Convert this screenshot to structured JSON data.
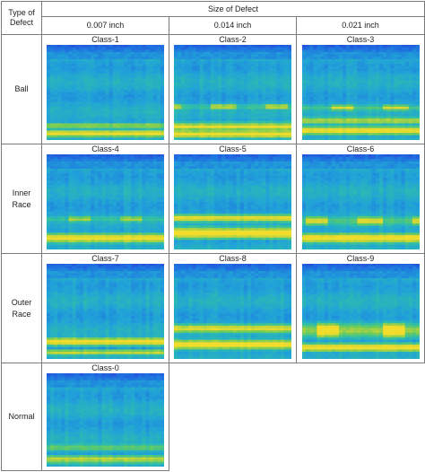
{
  "header": {
    "type_of_defect": "Type of\nDefect",
    "size_of_defect": "Size of Defect",
    "sizes": [
      "0.007 inch",
      "0.014 inch",
      "0.021 inch"
    ]
  },
  "rows": [
    {
      "label": "Ball",
      "classes": [
        "Class-1",
        "Class-2",
        "Class-3"
      ]
    },
    {
      "label": "Inner\nRace",
      "classes": [
        "Class-4",
        "Class-5",
        "Class-6"
      ]
    },
    {
      "label": "Outer\nRace",
      "classes": [
        "Class-7",
        "Class-8",
        "Class-9"
      ]
    },
    {
      "label": "Normal",
      "classes": [
        "Class-0"
      ]
    }
  ],
  "colors": {
    "colormap": [
      "#2b2bd6",
      "#1f6fe0",
      "#21a3d8",
      "#2fbfa9",
      "#6ccc5a",
      "#c6d53a",
      "#f2dc2c"
    ]
  }
}
